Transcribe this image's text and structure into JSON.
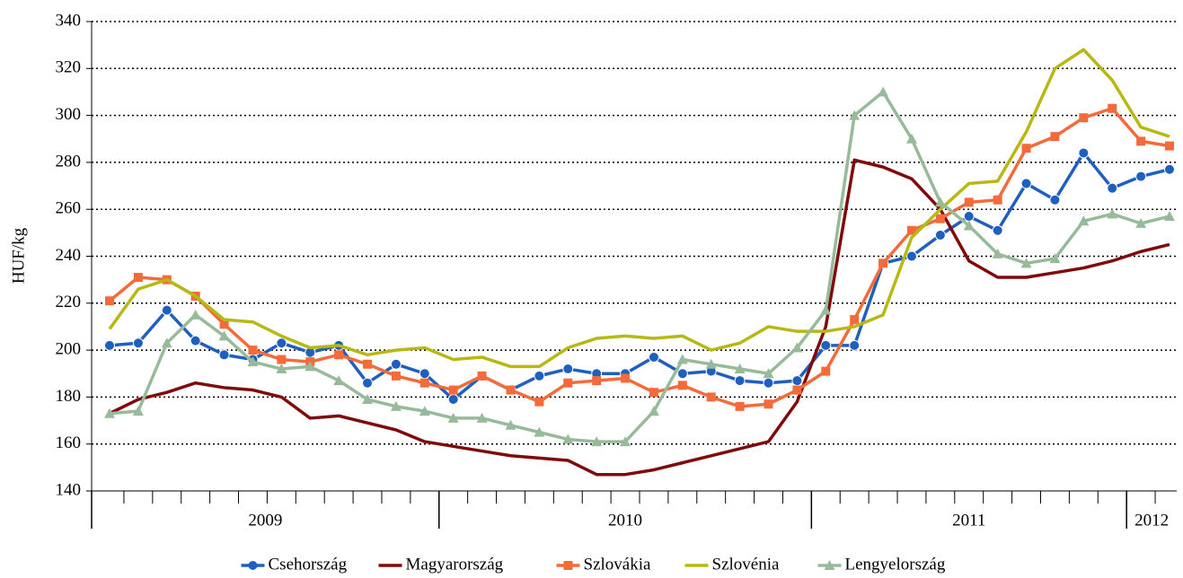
{
  "chart_data": {
    "type": "line",
    "y_label": "HUF/kg",
    "categories": [
      null,
      null,
      null,
      null,
      null,
      null,
      null,
      null,
      null,
      null,
      null,
      null,
      null,
      null,
      null,
      null,
      null,
      null,
      null,
      null,
      null,
      null,
      null,
      null,
      null,
      null,
      null,
      null,
      null,
      null,
      null,
      null,
      null,
      null,
      null,
      null,
      null,
      null
    ],
    "groups": [
      {
        "label": "2009",
        "count": 12
      },
      {
        "label": "2010",
        "count": 13
      },
      {
        "label": "2011",
        "count": 11
      },
      {
        "label": "2012",
        "count": 2
      }
    ],
    "ylim": [
      140,
      340
    ],
    "yticks": [
      140,
      160,
      180,
      200,
      220,
      240,
      260,
      280,
      300,
      320,
      340
    ],
    "grid": true,
    "series": [
      {
        "name": "Csehország",
        "color": "#1f5fbf",
        "marker": "circle",
        "values": [
          202,
          203,
          217,
          204,
          198,
          196,
          203,
          199,
          202,
          186,
          194,
          190,
          179,
          189,
          183,
          189,
          192,
          190,
          190,
          197,
          190,
          191,
          187,
          186,
          187,
          202,
          202,
          237,
          240,
          249,
          257,
          251,
          271,
          264,
          284,
          269,
          274,
          277
        ]
      },
      {
        "name": "Magyarország",
        "color": "#7f0a0a",
        "marker": "none",
        "values": [
          173,
          179,
          182,
          186,
          184,
          183,
          180,
          171,
          172,
          169,
          166,
          161,
          159,
          157,
          155,
          154,
          153,
          147,
          147,
          149,
          152,
          155,
          158,
          161,
          178,
          210,
          281,
          278,
          273,
          260,
          238,
          231,
          231,
          233,
          235,
          238,
          242,
          245
        ]
      },
      {
        "name": "Szlovákia",
        "color": "#f36b3b",
        "marker": "square",
        "values": [
          221,
          231,
          230,
          223,
          211,
          200,
          196,
          195,
          198,
          194,
          189,
          186,
          183,
          189,
          183,
          178,
          186,
          187,
          188,
          182,
          185,
          180,
          176,
          177,
          183,
          191,
          213,
          237,
          251,
          256,
          263,
          264,
          286,
          291,
          299,
          303,
          289,
          287
        ]
      },
      {
        "name": "Szlovénia",
        "color": "#b8b814",
        "marker": "none",
        "values": [
          209,
          226,
          230,
          223,
          213,
          212,
          206,
          201,
          202,
          198,
          200,
          201,
          196,
          197,
          193,
          193,
          201,
          205,
          206,
          205,
          206,
          200,
          203,
          210,
          208,
          208,
          210,
          215,
          248,
          260,
          271,
          272,
          293,
          320,
          328,
          315,
          295,
          291
        ]
      },
      {
        "name": "Lengyelország",
        "color": "#97bb9a",
        "marker": "triangle",
        "values": [
          173,
          174,
          203,
          215,
          206,
          195,
          192,
          193,
          187,
          179,
          176,
          174,
          171,
          171,
          168,
          165,
          162,
          161,
          161,
          174,
          196,
          194,
          192,
          190,
          201,
          217,
          300,
          310,
          290,
          263,
          253,
          241,
          237,
          239,
          255,
          258,
          254,
          257
        ]
      }
    ]
  }
}
